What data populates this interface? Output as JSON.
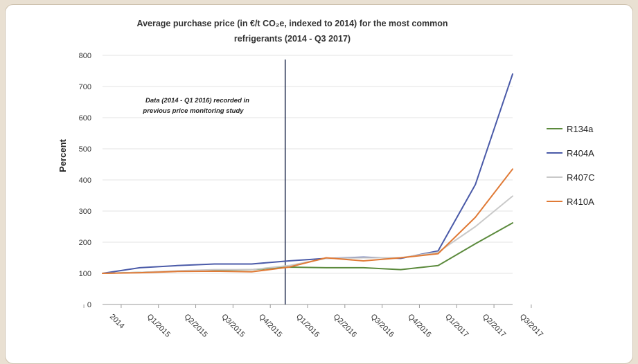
{
  "chart_data": {
    "type": "line",
    "title_line1": "Average purchase price (in €/t CO₂e, indexed to 2014) for the most common",
    "title_line2": "refrigerants (2014 - Q3 2017)",
    "ylabel": "Percent",
    "xlabel": "",
    "ylim": [
      0,
      800
    ],
    "yticks": [
      0,
      100,
      200,
      300,
      400,
      500,
      600,
      700,
      800
    ],
    "categories": [
      "2014",
      "Q1/2015",
      "Q2/2015",
      "Q3/2015",
      "Q4/2015",
      "Q1/2016",
      "Q2/2016",
      "Q3/2016",
      "Q4/2016",
      "Q1/2017",
      "Q2/2017",
      "Q3/2017"
    ],
    "annotation_line1": "Data (2014 - Q1 2016) recorded in",
    "annotation_line2": "previous price monitoring study",
    "divider_after_category": "Q1/2016",
    "grid": true,
    "legend_position": "right",
    "series": [
      {
        "name": "R134a",
        "color": "#5b8a3c",
        "values": [
          100,
          103,
          107,
          110,
          112,
          120,
          118,
          118,
          112,
          125,
          195,
          262
        ]
      },
      {
        "name": "R404A",
        "color": "#4a5aa8",
        "values": [
          100,
          118,
          125,
          130,
          130,
          140,
          148,
          152,
          148,
          172,
          385,
          740
        ]
      },
      {
        "name": "R407C",
        "color": "#c9c9c9",
        "values": [
          100,
          103,
          108,
          112,
          112,
          125,
          148,
          150,
          150,
          168,
          250,
          348
        ]
      },
      {
        "name": "R410A",
        "color": "#e07a36",
        "values": [
          100,
          102,
          106,
          107,
          105,
          120,
          150,
          140,
          150,
          163,
          280,
          435
        ]
      }
    ]
  }
}
